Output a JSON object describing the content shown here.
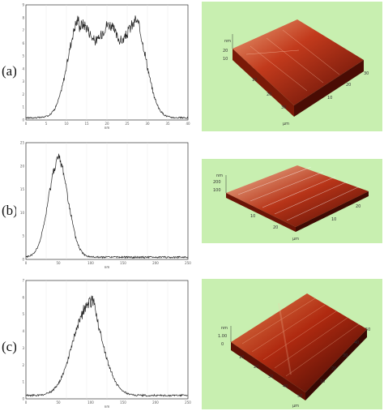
{
  "panels": [
    {
      "label": "(a)",
      "hist": {
        "x_ticks": [
          "0",
          "5",
          "10",
          "15",
          "20",
          "25",
          "30",
          "35",
          "40"
        ],
        "y_ticks": [
          "0",
          "1",
          "2",
          "3",
          "4",
          "5",
          "6",
          "7",
          "8",
          "9"
        ],
        "xlabel": "nm"
      },
      "afm": {
        "z_label": "nm",
        "z_ticks": [
          "20",
          "10"
        ],
        "x_ticks": [
          "10",
          "20",
          "30"
        ],
        "y_ticks": [
          "10",
          "20",
          "30"
        ],
        "unit": "μm"
      }
    },
    {
      "label": "(b)",
      "hist": {
        "x_ticks": [
          "0",
          "50",
          "100",
          "150",
          "200",
          "250"
        ],
        "y_ticks": [
          "0",
          "5",
          "10",
          "15",
          "20",
          "25"
        ],
        "xlabel": "nm"
      },
      "afm": {
        "z_label": "nm",
        "z_ticks": [
          "200",
          "100"
        ],
        "x_ticks": [
          "10",
          "20"
        ],
        "y_ticks": [
          "10",
          "20"
        ],
        "unit": "μm"
      }
    },
    {
      "label": "(c)",
      "hist": {
        "x_ticks": [
          "0",
          "50",
          "100",
          "150",
          "200",
          "250"
        ],
        "y_ticks": [
          "0",
          "1",
          "2",
          "3",
          "4",
          "5",
          "6",
          "7"
        ],
        "xlabel": "nm"
      },
      "afm": {
        "z_label": "nm",
        "z_ticks": [
          "1.00",
          "0"
        ],
        "x_ticks": [
          "10",
          "20",
          "30",
          "40",
          "50"
        ],
        "y_ticks": [
          "10",
          "20",
          "30",
          "40",
          "50"
        ],
        "unit": "μm"
      }
    }
  ]
}
